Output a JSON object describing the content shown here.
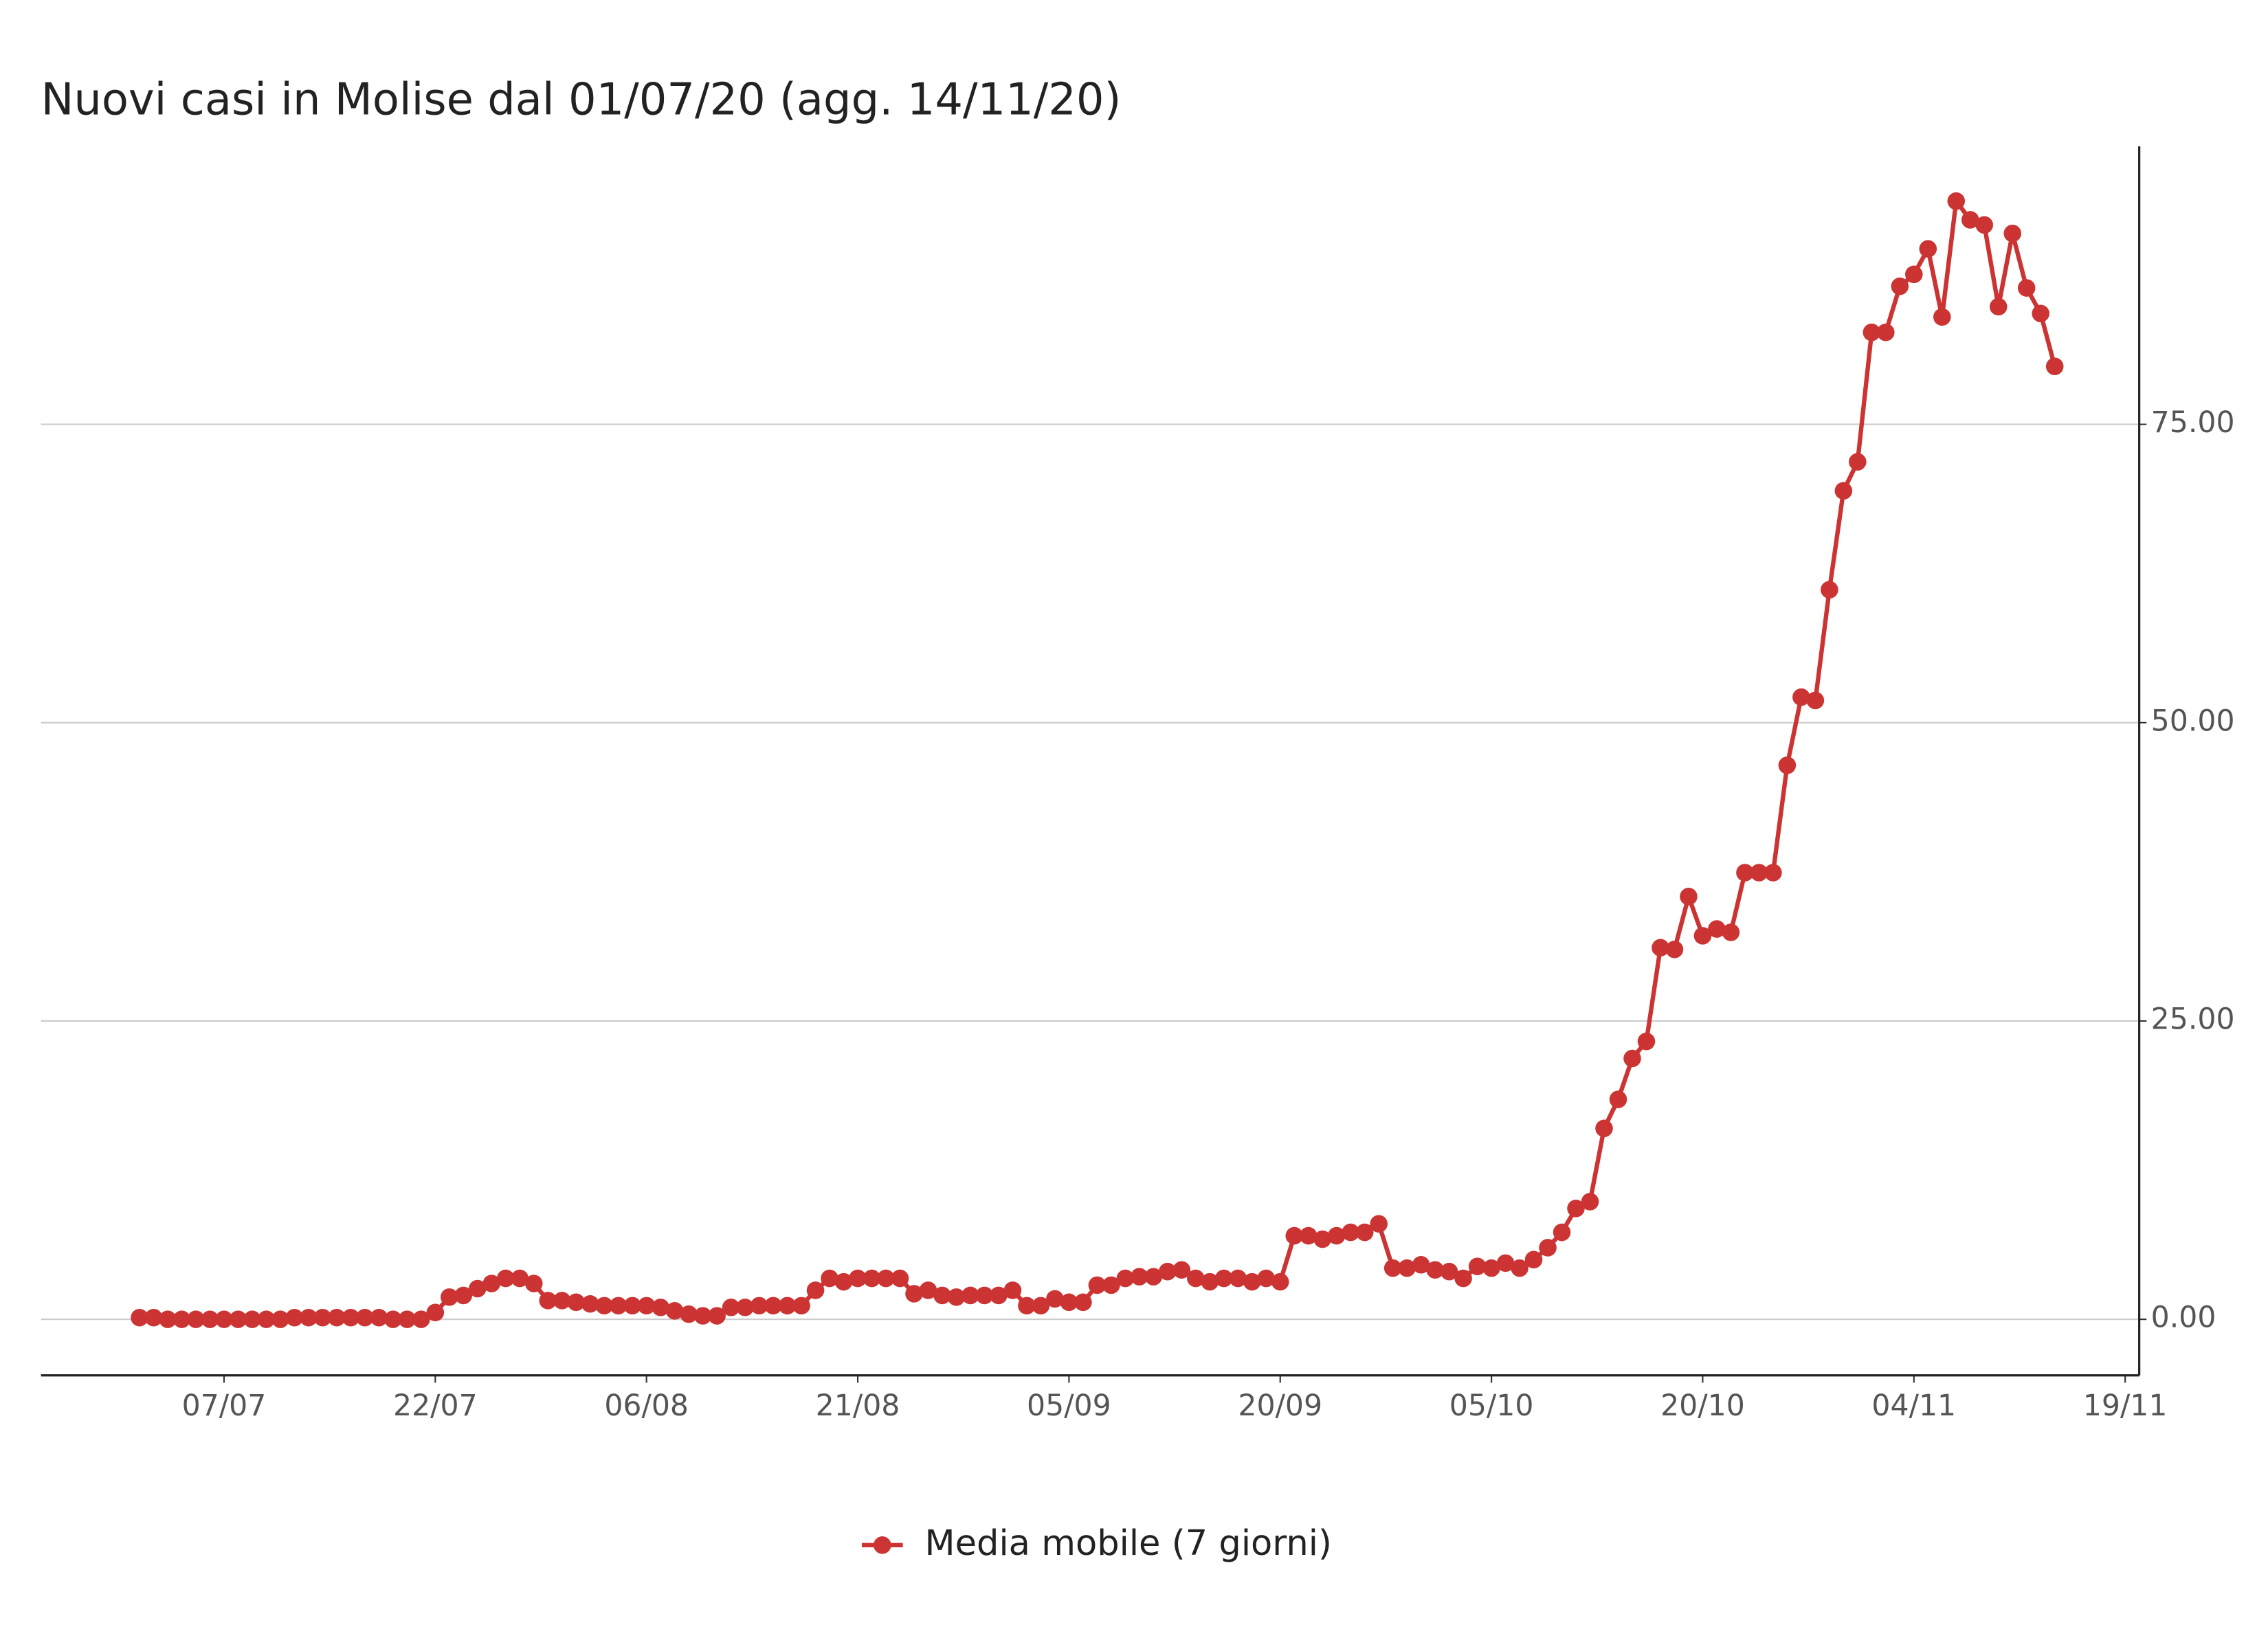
{
  "chart_data": {
    "type": "line",
    "title": "Nuovi casi in Molise dal 01/07/20 (agg. 14/11/20)",
    "x": [
      "01/07",
      "02/07",
      "03/07",
      "04/07",
      "05/07",
      "06/07",
      "07/07",
      "08/07",
      "09/07",
      "10/07",
      "11/07",
      "12/07",
      "13/07",
      "14/07",
      "15/07",
      "16/07",
      "17/07",
      "18/07",
      "19/07",
      "20/07",
      "21/07",
      "22/07",
      "23/07",
      "24/07",
      "25/07",
      "26/07",
      "27/07",
      "28/07",
      "29/07",
      "30/07",
      "31/07",
      "01/08",
      "02/08",
      "03/08",
      "04/08",
      "05/08",
      "06/08",
      "07/08",
      "08/08",
      "09/08",
      "10/08",
      "11/08",
      "12/08",
      "13/08",
      "14/08",
      "15/08",
      "16/08",
      "17/08",
      "18/08",
      "19/08",
      "20/08",
      "21/08",
      "22/08",
      "23/08",
      "24/08",
      "25/08",
      "26/08",
      "27/08",
      "28/08",
      "29/08",
      "30/08",
      "31/08",
      "01/09",
      "02/09",
      "03/09",
      "04/09",
      "05/09",
      "06/09",
      "07/09",
      "08/09",
      "09/09",
      "10/09",
      "11/09",
      "12/09",
      "13/09",
      "14/09",
      "15/09",
      "16/09",
      "17/09",
      "18/09",
      "19/09",
      "20/09",
      "21/09",
      "22/09",
      "23/09",
      "24/09",
      "25/09",
      "26/09",
      "27/09",
      "28/09",
      "29/09",
      "30/09",
      "01/10",
      "02/10",
      "03/10",
      "04/10",
      "05/10",
      "06/10",
      "07/10",
      "08/10",
      "09/10",
      "10/10",
      "11/10",
      "12/10",
      "13/10",
      "14/10",
      "15/10",
      "16/10",
      "17/10",
      "18/10",
      "19/10",
      "20/10",
      "21/10",
      "22/10",
      "23/10",
      "24/10",
      "25/10",
      "26/10",
      "27/10",
      "28/10",
      "29/10",
      "30/10",
      "31/10",
      "01/11",
      "02/11",
      "03/11",
      "04/11",
      "05/11",
      "06/11",
      "07/11",
      "08/11",
      "09/11",
      "10/11",
      "11/11",
      "12/11",
      "13/11",
      "14/11"
    ],
    "series": [
      {
        "name": "Media mobile (7 giorni)",
        "color": "#cc3333",
        "values": [
          0.14,
          0.14,
          0,
          0,
          0,
          0,
          0,
          0,
          0,
          0,
          0,
          0.14,
          0.14,
          0.14,
          0.14,
          0.14,
          0.14,
          0.14,
          0,
          0,
          0,
          0.57,
          1.86,
          2.0,
          2.57,
          3.0,
          3.43,
          3.43,
          3.0,
          1.57,
          1.57,
          1.43,
          1.29,
          1.14,
          1.14,
          1.14,
          1.14,
          1.0,
          0.71,
          0.43,
          0.29,
          0.29,
          1.0,
          1.0,
          1.14,
          1.14,
          1.14,
          1.14,
          2.43,
          3.43,
          3.14,
          3.43,
          3.43,
          3.43,
          3.43,
          2.14,
          2.43,
          2.0,
          1.86,
          2.0,
          2.0,
          2.0,
          2.43,
          1.14,
          1.14,
          1.71,
          1.43,
          1.43,
          2.86,
          2.86,
          3.43,
          3.57,
          3.57,
          4.0,
          4.14,
          3.43,
          3.14,
          3.43,
          3.43,
          3.14,
          3.43,
          3.14,
          7.0,
          7.0,
          6.71,
          7.0,
          7.29,
          7.29,
          8.0,
          4.29,
          4.29,
          4.57,
          4.14,
          4.0,
          3.43,
          4.43,
          4.29,
          4.71,
          4.29,
          5.0,
          6.0,
          7.29,
          9.29,
          9.86,
          16.0,
          18.43,
          21.86,
          23.29,
          31.14,
          31.0,
          35.43,
          32.14,
          32.71,
          32.43,
          37.43,
          37.43,
          37.43,
          46.43,
          52.14,
          51.86,
          61.14,
          69.43,
          71.86,
          82.71,
          82.71,
          86.57,
          87.57,
          89.71,
          84.0,
          93.71,
          92.14,
          91.71,
          84.86,
          91.0,
          86.43,
          84.29,
          79.86
        ]
      }
    ],
    "xlim": [
      "24/06",
      "20/11"
    ],
    "xticks": [
      "07/07",
      "22/07",
      "06/08",
      "21/08",
      "05/09",
      "20/09",
      "05/10",
      "20/10",
      "04/11",
      "19/11"
    ],
    "ylim": [
      -4.7,
      98.3
    ],
    "yticks": [
      {
        "value": 0,
        "label": "0.00"
      },
      {
        "value": 25,
        "label": "25.00"
      },
      {
        "value": 50,
        "label": "50.00"
      },
      {
        "value": 75,
        "label": "75.00"
      }
    ],
    "grid": true,
    "y_axis_side": "right",
    "legend_position": "bottom"
  }
}
